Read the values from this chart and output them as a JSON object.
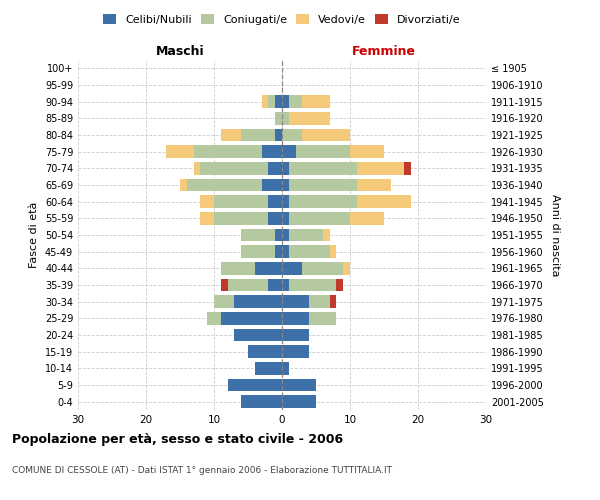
{
  "age_groups": [
    "0-4",
    "5-9",
    "10-14",
    "15-19",
    "20-24",
    "25-29",
    "30-34",
    "35-39",
    "40-44",
    "45-49",
    "50-54",
    "55-59",
    "60-64",
    "65-69",
    "70-74",
    "75-79",
    "80-84",
    "85-89",
    "90-94",
    "95-99",
    "100+"
  ],
  "birth_years": [
    "2001-2005",
    "1996-2000",
    "1991-1995",
    "1986-1990",
    "1981-1985",
    "1976-1980",
    "1971-1975",
    "1966-1970",
    "1961-1965",
    "1956-1960",
    "1951-1955",
    "1946-1950",
    "1941-1945",
    "1936-1940",
    "1931-1935",
    "1926-1930",
    "1921-1925",
    "1916-1920",
    "1911-1915",
    "1906-1910",
    "≤ 1905"
  ],
  "males": {
    "celibi": [
      6,
      8,
      4,
      5,
      7,
      9,
      7,
      2,
      4,
      1,
      1,
      2,
      2,
      3,
      2,
      3,
      1,
      0,
      1,
      0,
      0
    ],
    "coniugati": [
      0,
      0,
      0,
      0,
      0,
      2,
      3,
      6,
      5,
      5,
      5,
      8,
      8,
      11,
      10,
      10,
      5,
      1,
      1,
      0,
      0
    ],
    "vedovi": [
      0,
      0,
      0,
      0,
      0,
      0,
      0,
      0,
      0,
      0,
      0,
      2,
      2,
      1,
      1,
      4,
      3,
      0,
      1,
      0,
      0
    ],
    "divorziati": [
      0,
      0,
      0,
      0,
      0,
      0,
      0,
      1,
      0,
      0,
      0,
      0,
      0,
      0,
      0,
      0,
      0,
      0,
      0,
      0,
      0
    ]
  },
  "females": {
    "nubili": [
      5,
      5,
      1,
      4,
      4,
      4,
      4,
      1,
      3,
      1,
      1,
      1,
      1,
      1,
      1,
      2,
      0,
      0,
      1,
      0,
      0
    ],
    "coniugate": [
      0,
      0,
      0,
      0,
      0,
      4,
      3,
      7,
      6,
      6,
      5,
      9,
      10,
      10,
      10,
      8,
      3,
      1,
      2,
      0,
      0
    ],
    "vedove": [
      0,
      0,
      0,
      0,
      0,
      0,
      0,
      0,
      1,
      1,
      1,
      5,
      8,
      5,
      7,
      5,
      7,
      6,
      4,
      0,
      0
    ],
    "divorziate": [
      0,
      0,
      0,
      0,
      0,
      0,
      1,
      1,
      0,
      0,
      0,
      0,
      0,
      0,
      1,
      0,
      0,
      0,
      0,
      0,
      0
    ]
  },
  "colors": {
    "celibi": "#3d6fa8",
    "coniugati": "#b5c9a1",
    "vedovi": "#f5c97a",
    "divorziati": "#c0392b"
  },
  "xlim": 30,
  "title": "Popolazione per età, sesso e stato civile - 2006",
  "subtitle": "COMUNE DI CESSOLE (AT) - Dati ISTAT 1° gennaio 2006 - Elaborazione TUTTITALIA.IT",
  "ylabel_left": "Fasce di età",
  "ylabel_right": "Anni di nascita",
  "xlabel_left": "Maschi",
  "xlabel_right": "Femmine",
  "background_color": "#ffffff",
  "grid_color": "#cccccc"
}
